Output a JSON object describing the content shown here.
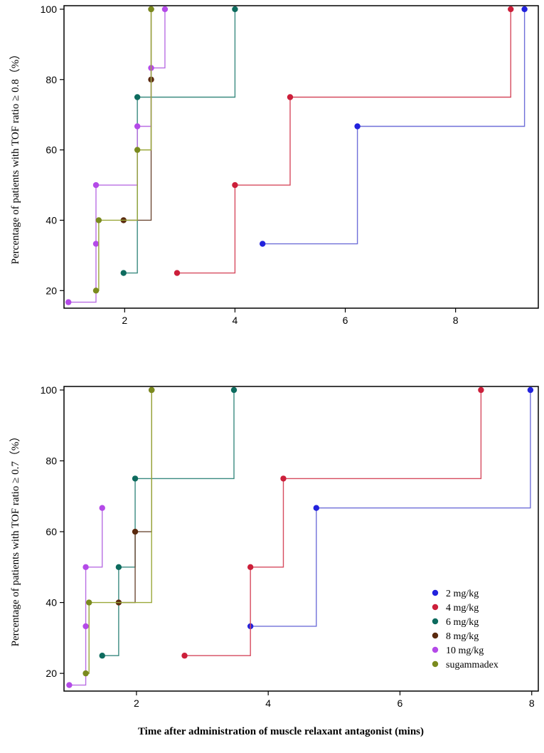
{
  "chart_data": [
    {
      "type": "line",
      "step": true,
      "ylabel": "Percentage of patients with TOF ratio ≥ 0.8（%）",
      "xlabel": "",
      "xlim": [
        0.9,
        9.5
      ],
      "ylim": [
        15,
        101
      ],
      "xticks": [
        "2",
        "4",
        "6",
        "8"
      ],
      "yticks": [
        "20",
        "40",
        "60",
        "80",
        "100"
      ],
      "series": [
        {
          "name": "2 mg/kg",
          "color": "#2222dd",
          "line_color": "#6f6fd8",
          "points": [
            [
              4.5,
              33.3
            ],
            [
              6.22,
              66.7
            ],
            [
              9.25,
              100
            ]
          ]
        },
        {
          "name": "4 mg/kg",
          "color": "#cc1f3a",
          "line_color": "#d64a5e",
          "points": [
            [
              2.95,
              25
            ],
            [
              4.0,
              50
            ],
            [
              5.0,
              75
            ],
            [
              9.0,
              100
            ]
          ]
        },
        {
          "name": "6 mg/kg",
          "color": "#0d6b5e",
          "line_color": "#3a8a80",
          "points": [
            [
              1.98,
              25
            ],
            [
              2.23,
              75
            ],
            [
              4.0,
              100
            ]
          ]
        },
        {
          "name": "8 mg/kg",
          "color": "#5a2a0e",
          "line_color": "#6e4a36",
          "points": [
            [
              1.98,
              40
            ],
            [
              2.48,
              80
            ],
            [
              2.48,
              100
            ]
          ]
        },
        {
          "name": "10 mg/kg",
          "color": "#b44ae8",
          "line_color": "#b96ee3",
          "points": [
            [
              0.98,
              16.7
            ],
            [
              1.48,
              33.3
            ],
            [
              1.48,
              50
            ],
            [
              2.23,
              66.7
            ],
            [
              2.48,
              83.3
            ],
            [
              2.73,
              100
            ]
          ]
        },
        {
          "name": "sugammadex",
          "color": "#7a8a1e",
          "line_color": "#9aa83a",
          "points": [
            [
              1.48,
              20
            ],
            [
              1.53,
              40
            ],
            [
              2.23,
              60
            ],
            [
              2.48,
              100
            ]
          ]
        }
      ]
    },
    {
      "type": "line",
      "step": true,
      "ylabel": "Percentage of patients with TOF ratio ≥ 0.7（%）",
      "xlabel": "Time after administration of muscle relaxant antagonist (mins)",
      "xlim": [
        0.9,
        8.1
      ],
      "ylim": [
        15,
        101
      ],
      "xticks": [
        "2",
        "4",
        "6",
        "8"
      ],
      "yticks": [
        "20",
        "40",
        "60",
        "80",
        "100"
      ],
      "legend_position": "bottom-right",
      "series": [
        {
          "name": "2 mg/kg",
          "color": "#2222dd",
          "line_color": "#6f6fd8",
          "points": [
            [
              3.73,
              33.3
            ],
            [
              4.73,
              66.7
            ],
            [
              7.98,
              100
            ]
          ]
        },
        {
          "name": "4 mg/kg",
          "color": "#cc1f3a",
          "line_color": "#d64a5e",
          "points": [
            [
              2.73,
              25
            ],
            [
              3.73,
              50
            ],
            [
              4.23,
              75
            ],
            [
              7.23,
              100
            ]
          ]
        },
        {
          "name": "6 mg/kg",
          "color": "#0d6b5e",
          "line_color": "#3a8a80",
          "points": [
            [
              1.48,
              25
            ],
            [
              1.73,
              50
            ],
            [
              1.98,
              75
            ],
            [
              3.48,
              100
            ]
          ]
        },
        {
          "name": "8 mg/kg",
          "color": "#5a2a0e",
          "line_color": "#6e4a36",
          "points": [
            [
              1.73,
              40
            ],
            [
              1.98,
              60
            ],
            [
              2.23,
              100
            ]
          ]
        },
        {
          "name": "10 mg/kg",
          "color": "#b44ae8",
          "line_color": "#b96ee3",
          "points": [
            [
              0.98,
              16.7
            ],
            [
              1.23,
              33.3
            ],
            [
              1.23,
              50
            ],
            [
              1.48,
              66.7
            ]
          ]
        },
        {
          "name": "sugammadex",
          "color": "#7a8a1e",
          "line_color": "#9aa83a",
          "points": [
            [
              1.23,
              20
            ],
            [
              1.28,
              40
            ],
            [
              2.23,
              100
            ]
          ]
        }
      ]
    }
  ]
}
